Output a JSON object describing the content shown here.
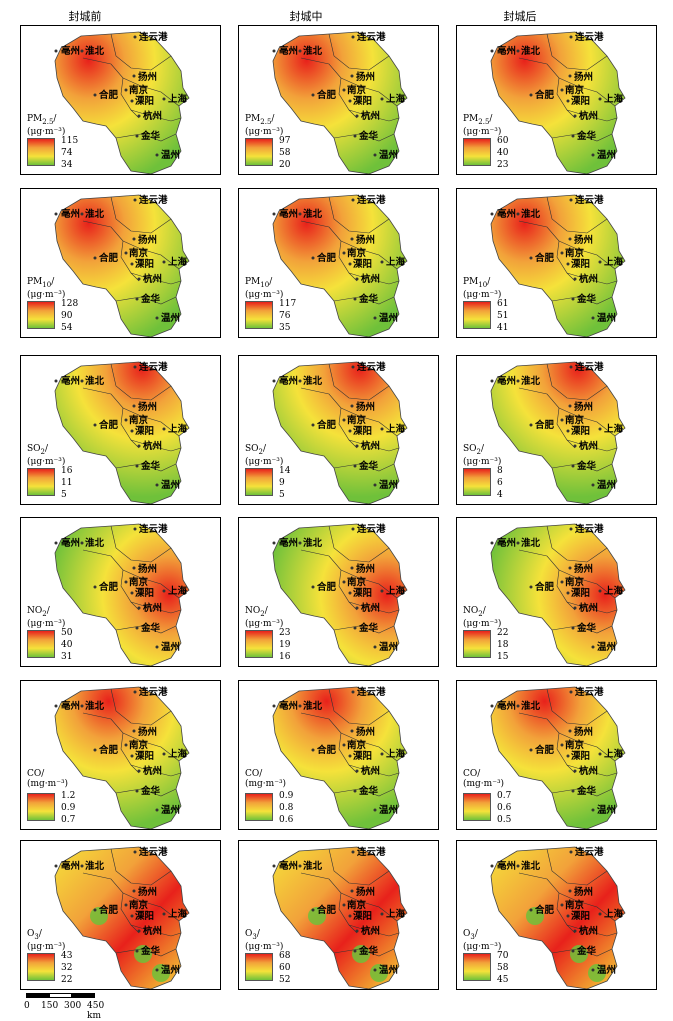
{
  "columns": [
    "封城前",
    "封城中",
    "封城后"
  ],
  "cities": [
    "亳州",
    "淮北",
    "连云港",
    "扬州",
    "合肥",
    "南京",
    "溧阳",
    "上海",
    "杭州",
    "金华",
    "温州"
  ],
  "rows": [
    {
      "pollutant": "PM2.5",
      "title_main": "PM",
      "title_sub": "2.5",
      "title_unit": "(μg·m⁻³)",
      "panels": [
        {
          "max": "115",
          "mid": "74",
          "min": "34",
          "hotspot": "northwest"
        },
        {
          "max": "97",
          "mid": "58",
          "min": "20",
          "hotspot": "northwest"
        },
        {
          "max": "60",
          "mid": "40",
          "min": "23",
          "hotspot": "northwest"
        }
      ]
    },
    {
      "pollutant": "PM10",
      "title_main": "PM",
      "title_sub": "10",
      "title_unit": "(μg·m⁻³)",
      "panels": [
        {
          "max": "128",
          "mid": "90",
          "min": "54",
          "hotspot": "northwest"
        },
        {
          "max": "117",
          "mid": "76",
          "min": "35",
          "hotspot": "northwest"
        },
        {
          "max": "61",
          "mid": "51",
          "min": "41",
          "hotspot": "northwest"
        }
      ]
    },
    {
      "pollutant": "SO2",
      "title_main": "SO",
      "title_sub": "2",
      "title_unit": "(μg·m⁻³)",
      "panels": [
        {
          "max": "16",
          "mid": "11",
          "min": "5",
          "hotspot": "northeast"
        },
        {
          "max": "14",
          "mid": "9",
          "min": "5",
          "hotspot": "northeast"
        },
        {
          "max": "8",
          "mid": "6",
          "min": "4",
          "hotspot": "northeast"
        }
      ]
    },
    {
      "pollutant": "NO2",
      "title_main": "NO",
      "title_sub": "2",
      "title_unit": "(μg·m⁻³)",
      "panels": [
        {
          "max": "50",
          "mid": "40",
          "min": "31",
          "hotspot": "east"
        },
        {
          "max": "23",
          "mid": "19",
          "min": "16",
          "hotspot": "east"
        },
        {
          "max": "22",
          "mid": "18",
          "min": "15",
          "hotspot": "east"
        }
      ]
    },
    {
      "pollutant": "CO",
      "title_main": "CO",
      "title_sub": "",
      "title_unit": "(mg·m⁻³)",
      "panels": [
        {
          "max": "1.2",
          "mid": "0.9",
          "min": "0.7",
          "hotspot": "north"
        },
        {
          "max": "0.9",
          "mid": "0.8",
          "min": "0.6",
          "hotspot": "north"
        },
        {
          "max": "0.7",
          "mid": "0.6",
          "min": "0.5",
          "hotspot": "north"
        }
      ]
    },
    {
      "pollutant": "O3",
      "title_main": "O",
      "title_sub": "3",
      "title_unit": "(μg·m⁻³)",
      "panels": [
        {
          "max": "43",
          "mid": "32",
          "min": "22",
          "hotspot": "all"
        },
        {
          "max": "68",
          "mid": "60",
          "min": "52",
          "hotspot": "all"
        },
        {
          "max": "70",
          "mid": "58",
          "min": "45",
          "hotspot": "all"
        }
      ]
    }
  ],
  "colors": {
    "high": "#e8211b",
    "mid": "#f5e23a",
    "low": "#6fc13a"
  },
  "scale": {
    "labels": [
      "0",
      "150",
      "300",
      "450 km"
    ]
  }
}
